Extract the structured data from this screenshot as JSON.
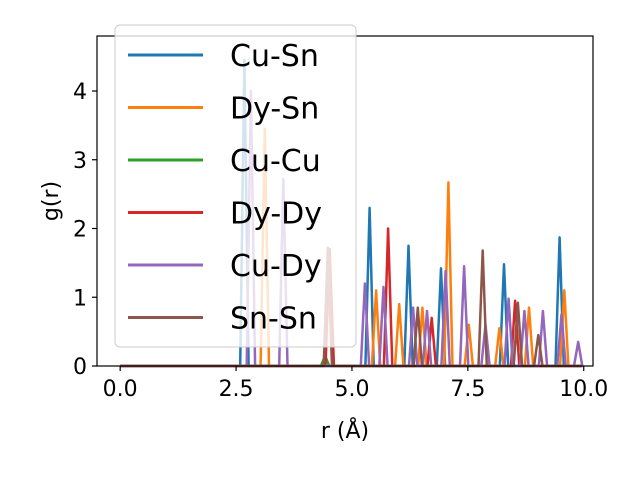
{
  "chart_data": {
    "type": "line",
    "title": "",
    "xlabel": "r (Å)",
    "ylabel": "g(r)",
    "xlim": [
      -0.5,
      10.2
    ],
    "ylim": [
      0,
      4.8
    ],
    "xticks": [
      0.0,
      2.5,
      5.0,
      7.5,
      10.0
    ],
    "xtick_labels": [
      "0.0",
      "2.5",
      "5.0",
      "7.5",
      "10.0"
    ],
    "yticks": [
      0,
      1,
      2,
      3,
      4
    ],
    "ytick_labels": [
      "0",
      "1",
      "2",
      "3",
      "4"
    ],
    "grid": false,
    "legend_position": "top-left",
    "series": [
      {
        "name": "Cu-Sn",
        "color": "#1f77b4",
        "peaks": [
          [
            2.68,
            4.45
          ],
          [
            5.38,
            2.3
          ],
          [
            6.22,
            1.75
          ],
          [
            6.92,
            1.42
          ],
          [
            8.28,
            1.48
          ],
          [
            9.48,
            1.87
          ]
        ]
      },
      {
        "name": "Dy-Sn",
        "color": "#ff7f0e",
        "peaks": [
          [
            3.12,
            3.45
          ],
          [
            5.52,
            1.1
          ],
          [
            6.02,
            0.9
          ],
          [
            6.52,
            0.85
          ],
          [
            7.08,
            2.67
          ],
          [
            7.52,
            0.6
          ],
          [
            8.18,
            0.55
          ],
          [
            8.82,
            0.85
          ],
          [
            9.58,
            1.1
          ]
        ]
      },
      {
        "name": "Cu-Cu",
        "color": "#2ca02c",
        "peaks": [
          [
            4.42,
            0.15
          ]
        ]
      },
      {
        "name": "Dy-Dy",
        "color": "#d62728",
        "peaks": [
          [
            4.52,
            1.7
          ],
          [
            5.78,
            2.0
          ],
          [
            6.72,
            0.7
          ],
          [
            8.52,
            0.95
          ]
        ]
      },
      {
        "name": "Cu-Dy",
        "color": "#9467bd",
        "peaks": [
          [
            2.82,
            4.0
          ],
          [
            3.52,
            2.72
          ],
          [
            5.28,
            1.2
          ],
          [
            5.68,
            1.15
          ],
          [
            6.32,
            0.85
          ],
          [
            6.62,
            0.8
          ],
          [
            7.02,
            1.38
          ],
          [
            7.42,
            1.45
          ],
          [
            7.88,
            0.6
          ],
          [
            8.38,
            0.98
          ],
          [
            8.72,
            0.8
          ],
          [
            9.12,
            0.8
          ],
          [
            9.52,
            0.75
          ],
          [
            9.88,
            0.35
          ]
        ]
      },
      {
        "name": "Sn-Sn",
        "color": "#8c564b",
        "peaks": [
          [
            4.48,
            1.72
          ],
          [
            6.42,
            0.85
          ],
          [
            7.82,
            1.68
          ],
          [
            8.58,
            0.92
          ],
          [
            9.02,
            0.45
          ]
        ]
      }
    ]
  }
}
